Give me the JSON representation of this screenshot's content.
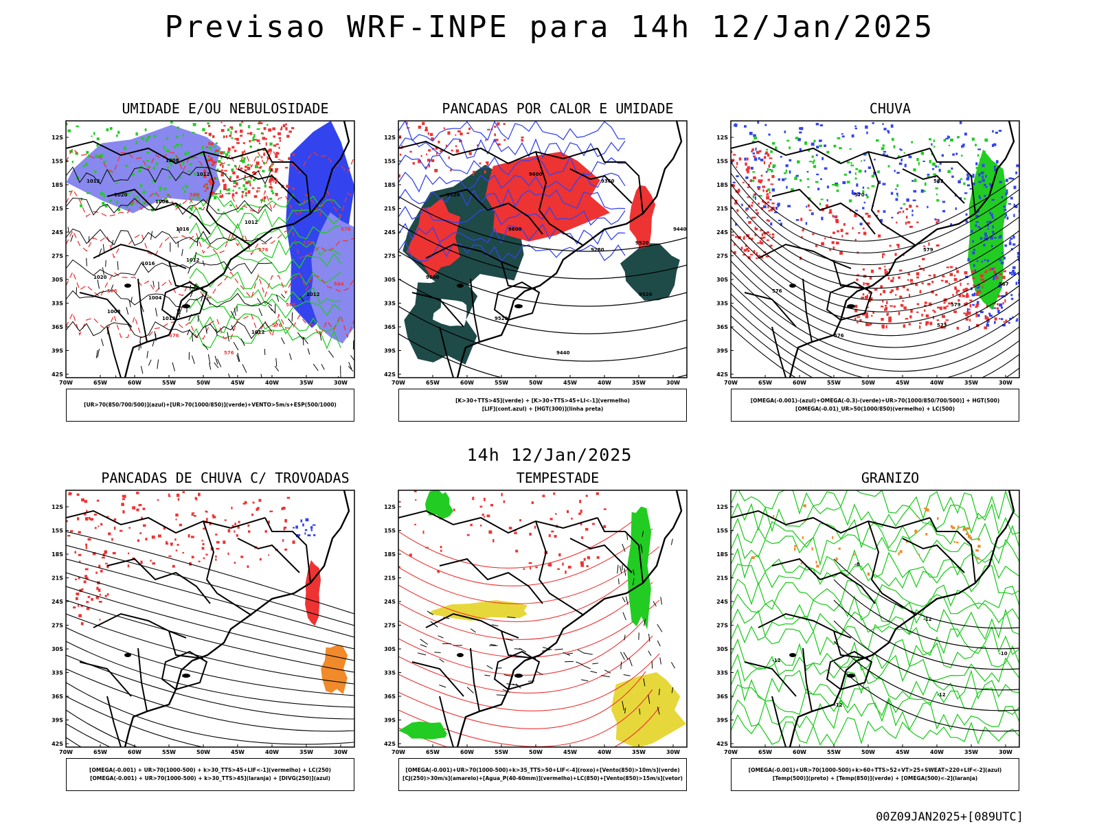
{
  "main_title": "Previsao WRF-INPE  para 14h 12/Jan/2025",
  "mid_title": "14h 12/Jan/2025",
  "footer": "00Z09JAN2025+[089UTC]",
  "lat_labels": [
    "12S",
    "15S",
    "18S",
    "21S",
    "24S",
    "27S",
    "30S",
    "33S",
    "36S",
    "39S",
    "42S"
  ],
  "lon_labels": [
    "70W",
    "65W",
    "60W",
    "55W",
    "50W",
    "45W",
    "40W",
    "35W",
    "30W"
  ],
  "colors": {
    "red": "#ee3333",
    "green": "#22cc22",
    "blue": "#3344ee",
    "purple": "#8888ee",
    "teal": "#1e4a48",
    "yellow": "#e6d83a",
    "orange": "#f08a2a"
  },
  "panels": [
    {
      "title": "UMIDADE E/OU NEBULOSIDADE",
      "legend": [
        "[UR>70(850/700/500)](azul)+[UR>70(1000/850)](verde)+VENTO>5m/s+ESP(500/1000)"
      ],
      "contour_labels": [
        "1008",
        "1008",
        "1012",
        "1004",
        "1008",
        "1012",
        "1012",
        "1016",
        "1012",
        "1012",
        "1016",
        "1020",
        "1012",
        "1012",
        "1020",
        "576",
        "576",
        "576",
        "576",
        "576",
        "576",
        "576",
        "576",
        "580",
        "584",
        "588"
      ]
    },
    {
      "title": "PANCADAS POR CALOR E UMIDADE",
      "legend": [
        "[K>30+TTS>45](verde) + [K>30+TTS>45+LI<-1](vermelho)",
        "[LIF](cont.azul) + [HGT(300)](linha preta)"
      ],
      "contour_labels": [
        "9600",
        "9600",
        "9600",
        "9520",
        "9520",
        "9520",
        "9520",
        "9440",
        "9440",
        "9360",
        "9280"
      ]
    },
    {
      "title": "CHUVA",
      "legend": [
        "[OMEGA(-0.001)-(azul)+OMEGA(-0.3)-(verde)+UR>70(1000/850/700/500)] + HGT(500)",
        "[OMEGA(-0.01)_UR>50(1000/850)(vermelho) + LC(500)"
      ],
      "contour_labels": [
        "582",
        "579",
        "576",
        "576",
        "573",
        "570",
        "567",
        "579"
      ]
    },
    {
      "title": "PANCADAS DE CHUVA C/ TROVOADAS",
      "legend": [
        "[OMEGA(-0.001) + UR>70(1000-500) + k>30_TTS>45+LIF<-1](vermelho) + LC(250)",
        "[OMEGA(-0.001) + UR>70(1000-500) + k>30_TTS>45](laranja) + [DIVG(250)](azul)"
      ],
      "contour_labels": []
    },
    {
      "title": "TEMPESTADE",
      "legend": [
        "[OMEGA(-0.001)+UR>70(1000-500)+k>35_TTS>50+LIF<-4](roxo)+[Vento(850)>10m/s](verde)",
        "[CJ(250)>30m/s](amarelo)+[Agua_P(40-60mm)](vermelho)+LC(850)+[Vento(850)>15m/s](vetor)"
      ],
      "contour_labels": []
    },
    {
      "title": "GRANIZO",
      "legend": [
        "[OMEGA(-0.001)+UR>70(1000-500)+k>60+TTS>52+VT>25+SWEAT>220+LIF<-2](azul)",
        "[Temp(500)](preto) + [Temp(850)](verde) + [OMEGA(500)<-2](laranja)"
      ],
      "contour_labels": [
        "-12",
        "-12",
        "-12",
        "-12",
        "-8",
        "-10"
      ]
    }
  ]
}
